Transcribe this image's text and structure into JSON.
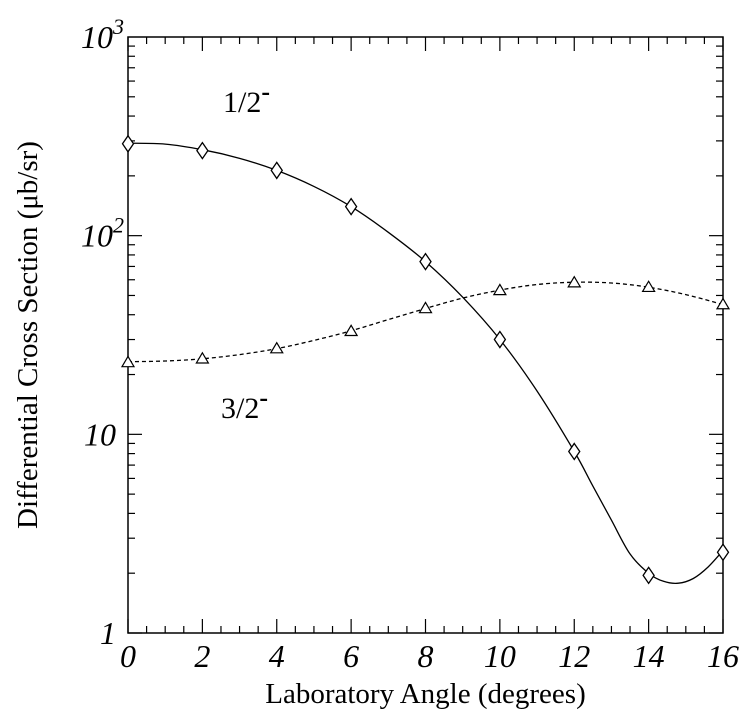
{
  "chart_data": {
    "type": "scatter",
    "title": "",
    "xlabel": "Laboratory Angle (degrees)",
    "ylabel": "Differential Cross Section (μb/sr)",
    "xlim": [
      0,
      16
    ],
    "ylim": [
      1,
      1000
    ],
    "yscale": "log",
    "grid": false,
    "x_ticks": [
      {
        "value": 0,
        "label": "0"
      },
      {
        "value": 2,
        "label": "2"
      },
      {
        "value": 4,
        "label": "4"
      },
      {
        "value": 6,
        "label": "6"
      },
      {
        "value": 8,
        "label": "8"
      },
      {
        "value": 10,
        "label": "10"
      },
      {
        "value": 12,
        "label": "12"
      },
      {
        "value": 14,
        "label": "14"
      },
      {
        "value": 16,
        "label": "16"
      }
    ],
    "y_ticks": [
      {
        "value": 1,
        "base": "1",
        "exp": ""
      },
      {
        "value": 10,
        "base": "10",
        "exp": ""
      },
      {
        "value": 100,
        "base": "10",
        "exp": "2"
      },
      {
        "value": 1000,
        "base": "10",
        "exp": "3"
      }
    ],
    "series": [
      {
        "name": "1/2⁻",
        "label_base": "1/2",
        "label_sup": "-",
        "marker": "diamond",
        "line": "solid",
        "points": [
          [
            0,
            290
          ],
          [
            2,
            268
          ],
          [
            4,
            213
          ],
          [
            6,
            140
          ],
          [
            8,
            74
          ],
          [
            10,
            30
          ],
          [
            12,
            8.2
          ],
          [
            14,
            1.95
          ],
          [
            16,
            2.55
          ]
        ],
        "curve": [
          [
            0,
            292
          ],
          [
            1,
            289
          ],
          [
            2,
            271
          ],
          [
            3,
            245
          ],
          [
            4,
            213
          ],
          [
            5,
            177
          ],
          [
            6,
            140
          ],
          [
            7,
            104
          ],
          [
            8,
            74
          ],
          [
            9,
            49
          ],
          [
            10,
            30
          ],
          [
            11,
            16.5
          ],
          [
            12,
            8.2
          ],
          [
            12.5,
            5.5
          ],
          [
            13,
            3.7
          ],
          [
            13.5,
            2.5
          ],
          [
            14,
            2.0
          ],
          [
            14.4,
            1.82
          ],
          [
            14.8,
            1.78
          ],
          [
            15.2,
            1.88
          ],
          [
            15.6,
            2.15
          ],
          [
            16,
            2.6
          ]
        ]
      },
      {
        "name": "3/2⁻",
        "label_base": "3/2",
        "label_sup": "-",
        "marker": "triangle",
        "line": "dashed",
        "points": [
          [
            0,
            23
          ],
          [
            2,
            24
          ],
          [
            4,
            27
          ],
          [
            6,
            33
          ],
          [
            8,
            43
          ],
          [
            10,
            53
          ],
          [
            12,
            58
          ],
          [
            14,
            55
          ],
          [
            16,
            45
          ]
        ],
        "curve": [
          [
            0,
            23.2
          ],
          [
            1,
            23.4
          ],
          [
            2,
            24.0
          ],
          [
            3,
            25.2
          ],
          [
            4,
            27.0
          ],
          [
            5,
            29.7
          ],
          [
            6,
            33.2
          ],
          [
            7,
            37.8
          ],
          [
            8,
            43.0
          ],
          [
            9,
            48.5
          ],
          [
            10,
            53.2
          ],
          [
            11,
            56.8
          ],
          [
            12,
            58.3
          ],
          [
            13,
            57.8
          ],
          [
            14,
            55.0
          ],
          [
            15,
            50.5
          ],
          [
            16,
            45.0
          ]
        ]
      }
    ]
  }
}
